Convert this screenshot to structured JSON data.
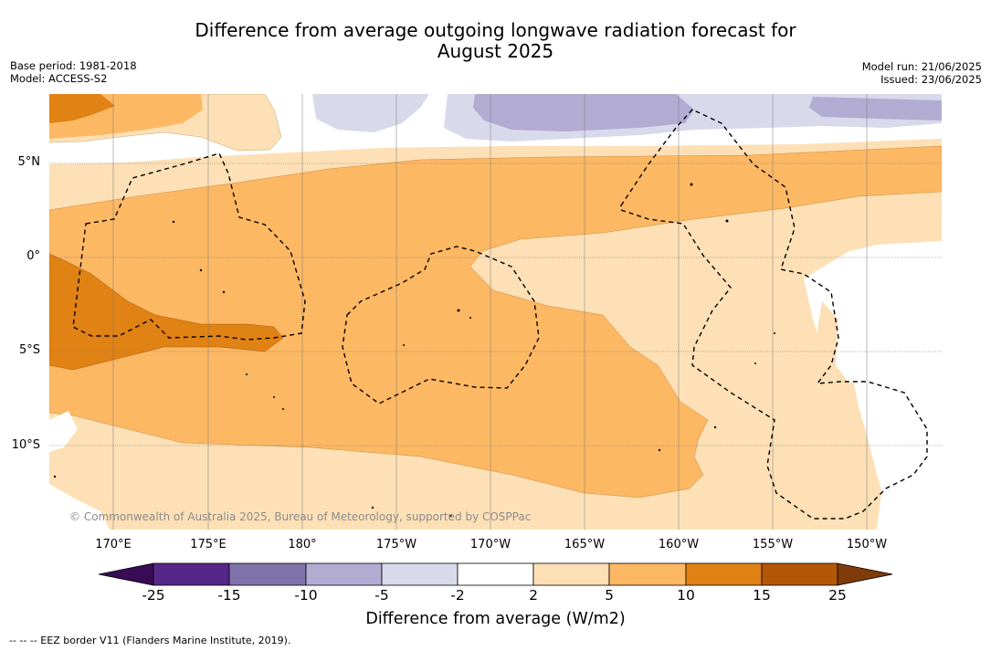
{
  "title": {
    "line1": "Difference from average outgoing longwave radiation forecast for",
    "line2": "August 2025"
  },
  "meta_left": {
    "base_period": "Base period: 1981-2018",
    "model": "Model: ACCESS-S2"
  },
  "meta_right": {
    "model_run": "Model run: 21/06/2025",
    "issued": "Issued: 23/06/2025"
  },
  "map": {
    "lat_labels": [
      "5°N",
      "0°",
      "5°S",
      "10°S"
    ],
    "lon_labels": [
      "170°E",
      "175°E",
      "180°",
      "175°W",
      "170°W",
      "165°W",
      "160°W",
      "155°W",
      "150°W"
    ],
    "copyright": "© Commonwealth of Australia 2025, Bureau of Meteorology, supported by COSPPac"
  },
  "colorbar": {
    "tick_labels": [
      "-25",
      "-15",
      "-10",
      "-5",
      "-2",
      "2",
      "5",
      "10",
      "15",
      "25"
    ],
    "colors": [
      "#3a0b55",
      "#542788",
      "#8073ac",
      "#b2abd2",
      "#d8daeb",
      "#ffffff",
      "#fee0b6",
      "#fdb863",
      "#e08214",
      "#b35806",
      "#7f3b08"
    ],
    "label": "Difference from average (W/m2)"
  },
  "footer": "-- -- -- EEZ border V11 (Flanders Marine Institute, 2019)."
}
